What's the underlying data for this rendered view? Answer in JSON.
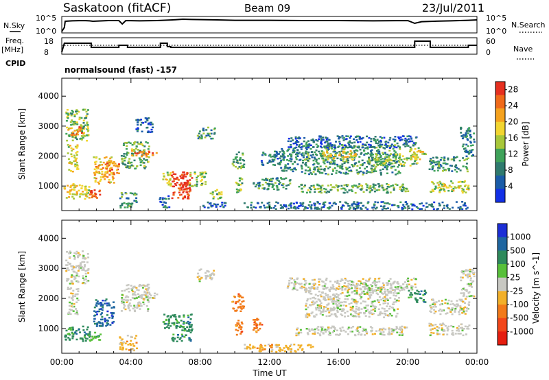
{
  "header": {
    "station": "Saskatoon (fitACF)",
    "beam": "Beam 09",
    "date": "23/Jul/2011"
  },
  "params": {
    "nsky_label": "N.Sky",
    "nsearch_label": "N.Search",
    "freq_label_1": "Freq.",
    "freq_label_2": "[MHz]",
    "nave_label": "Nave",
    "cpid_label": "CPID",
    "cpid_value": "normalsound (fast) -157",
    "noise_ticks": [
      "10^5",
      "10^0"
    ],
    "freq_ticks": [
      "18",
      "8"
    ],
    "nave_ticks": [
      "60",
      "0"
    ],
    "noise_series": [
      [
        0.0,
        0.0
      ],
      [
        0.15,
        0.3
      ],
      [
        0.2,
        0.75
      ],
      [
        0.6,
        0.78
      ],
      [
        1.2,
        0.8
      ],
      [
        1.6,
        0.78
      ],
      [
        1.8,
        0.75
      ],
      [
        2.7,
        0.8
      ],
      [
        3.3,
        0.8
      ],
      [
        3.5,
        0.55
      ],
      [
        3.7,
        0.8
      ],
      [
        4.5,
        0.78
      ],
      [
        5.5,
        0.8
      ],
      [
        6.4,
        0.85
      ],
      [
        7.0,
        0.9
      ],
      [
        7.5,
        0.88
      ],
      [
        9.0,
        0.85
      ],
      [
        10.0,
        0.82
      ],
      [
        12.0,
        0.82
      ],
      [
        14.0,
        0.8
      ],
      [
        16.0,
        0.8
      ],
      [
        18.0,
        0.78
      ],
      [
        20.0,
        0.8
      ],
      [
        20.4,
        0.6
      ],
      [
        20.8,
        0.72
      ],
      [
        21.5,
        0.75
      ],
      [
        22.5,
        0.78
      ],
      [
        23.5,
        0.82
      ],
      [
        24.0,
        0.85
      ]
    ],
    "freq_steps": [
      [
        0.0,
        0.05
      ],
      [
        0.15,
        0.7
      ],
      [
        1.7,
        0.7
      ],
      [
        1.7,
        0.4
      ],
      [
        3.3,
        0.4
      ],
      [
        3.3,
        0.55
      ],
      [
        3.8,
        0.55
      ],
      [
        3.8,
        0.4
      ],
      [
        5.7,
        0.4
      ],
      [
        5.7,
        0.7
      ],
      [
        6.1,
        0.7
      ],
      [
        6.1,
        0.45
      ],
      [
        6.3,
        0.45
      ],
      [
        6.3,
        0.4
      ],
      [
        20.4,
        0.4
      ],
      [
        20.4,
        0.85
      ],
      [
        21.3,
        0.85
      ],
      [
        21.3,
        0.4
      ],
      [
        23.5,
        0.4
      ],
      [
        23.5,
        0.55
      ],
      [
        24.0,
        0.55
      ]
    ],
    "nave_level": 0.55
  },
  "chart_data": [
    {
      "type": "heatmap",
      "title": "",
      "xlabel": "",
      "ylabel": "Slant Range [km]",
      "xlim": [
        0,
        24
      ],
      "ylim": [
        180,
        4600
      ],
      "xticks": [
        "",
        "",
        "",
        "",
        "",
        "",
        ""
      ],
      "yticks": [
        "1000",
        "2000",
        "3000",
        "4000"
      ],
      "ytick_values": [
        1000,
        2000,
        3000,
        4000
      ],
      "colorbar": {
        "label": "Power [dB]",
        "range": [
          0,
          30
        ],
        "ticks": [
          "4",
          "8",
          "12",
          "16",
          "20",
          "24",
          "28"
        ],
        "tick_values": [
          4,
          8,
          12,
          16,
          20,
          24,
          28
        ],
        "colors": [
          "#1230e6",
          "#1a5ca8",
          "#2f7a6e",
          "#3fa25a",
          "#a8c73a",
          "#f2d530",
          "#f5a21e",
          "#f06a1a",
          "#e63020"
        ]
      },
      "features": [
        {
          "t0": 0.1,
          "t1": 1.6,
          "r0": 600,
          "r1": 1100,
          "v": 18
        },
        {
          "t0": 0.2,
          "t1": 1.5,
          "r0": 2500,
          "r1": 3600,
          "v": 14
        },
        {
          "t0": 0.3,
          "t1": 1.2,
          "r0": 2700,
          "r1": 3000,
          "v": 24
        },
        {
          "t0": 0.3,
          "t1": 0.9,
          "r0": 1500,
          "r1": 2400,
          "v": 16
        },
        {
          "t0": 1.5,
          "t1": 2.2,
          "r0": 600,
          "r1": 900,
          "v": 28
        },
        {
          "t0": 1.8,
          "t1": 3.0,
          "r0": 1100,
          "r1": 2000,
          "v": 20
        },
        {
          "t0": 2.5,
          "t1": 3.3,
          "r0": 1400,
          "r1": 1900,
          "v": 24
        },
        {
          "t0": 3.4,
          "t1": 5.0,
          "r0": 1600,
          "r1": 2500,
          "v": 12
        },
        {
          "t0": 4.0,
          "t1": 5.5,
          "r0": 2000,
          "r1": 2200,
          "v": 24
        },
        {
          "t0": 4.2,
          "t1": 5.2,
          "r0": 2800,
          "r1": 3300,
          "v": 6
        },
        {
          "t0": 3.3,
          "t1": 4.3,
          "r0": 300,
          "r1": 800,
          "v": 10
        },
        {
          "t0": 5.6,
          "t1": 6.2,
          "r0": 300,
          "r1": 700,
          "v": 6
        },
        {
          "t0": 5.8,
          "t1": 6.3,
          "r0": 1000,
          "r1": 1500,
          "v": 16
        },
        {
          "t0": 6.3,
          "t1": 7.5,
          "r0": 600,
          "r1": 1500,
          "v": 28
        },
        {
          "t0": 6.8,
          "t1": 7.3,
          "r0": 900,
          "r1": 1400,
          "v": 30
        },
        {
          "t0": 7.3,
          "t1": 8.3,
          "r0": 1000,
          "r1": 1500,
          "v": 14
        },
        {
          "t0": 7.8,
          "t1": 8.8,
          "r0": 2600,
          "r1": 3000,
          "v": 10
        },
        {
          "t0": 8.5,
          "t1": 9.2,
          "r0": 600,
          "r1": 900,
          "v": 14
        },
        {
          "t0": 8.0,
          "t1": 9.5,
          "r0": 300,
          "r1": 500,
          "v": 6
        },
        {
          "t0": 9.8,
          "t1": 10.5,
          "r0": 1600,
          "r1": 2200,
          "v": 12
        },
        {
          "t0": 10.0,
          "t1": 10.4,
          "r0": 800,
          "r1": 1300,
          "v": 14
        },
        {
          "t0": 10.5,
          "t1": 12.0,
          "r0": 300,
          "r1": 500,
          "v": 8
        },
        {
          "t0": 11.0,
          "t1": 13.2,
          "r0": 900,
          "r1": 1300,
          "v": 10
        },
        {
          "t0": 11.5,
          "t1": 12.5,
          "r0": 1700,
          "r1": 2200,
          "v": 8
        },
        {
          "t0": 12.5,
          "t1": 14.0,
          "r0": 1500,
          "r1": 2300,
          "v": 8
        },
        {
          "t0": 13.5,
          "t1": 20.0,
          "r0": 800,
          "r1": 1100,
          "v": 12
        },
        {
          "t0": 14.0,
          "t1": 19.5,
          "r0": 1400,
          "r1": 2400,
          "v": 10
        },
        {
          "t0": 15.0,
          "t1": 17.0,
          "r0": 1900,
          "r1": 2200,
          "v": 18
        },
        {
          "t0": 18.0,
          "t1": 20.5,
          "r0": 1700,
          "r1": 2100,
          "v": 14
        },
        {
          "t0": 13.0,
          "t1": 20.5,
          "r0": 2300,
          "r1": 2700,
          "v": 6
        },
        {
          "t0": 20.0,
          "t1": 21.0,
          "r0": 1900,
          "r1": 2300,
          "v": 18
        },
        {
          "t0": 21.2,
          "t1": 23.5,
          "r0": 800,
          "r1": 1200,
          "v": 16
        },
        {
          "t0": 21.2,
          "t1": 23.5,
          "r0": 1500,
          "r1": 2000,
          "v": 10
        },
        {
          "t0": 23.0,
          "t1": 23.8,
          "r0": 2000,
          "r1": 3000,
          "v": 8
        },
        {
          "t0": 12.0,
          "t1": 23.5,
          "r0": 250,
          "r1": 500,
          "v": 6
        }
      ]
    },
    {
      "type": "heatmap",
      "title": "",
      "xlabel": "Time UT",
      "ylabel": "Slant Range [km]",
      "xlim": [
        0,
        24
      ],
      "ylim": [
        180,
        4600
      ],
      "xticks": [
        "00:00",
        "04:00",
        "08:00",
        "12:00",
        "16:00",
        "20:00",
        "00:00"
      ],
      "yticks": [
        "1000",
        "2000",
        "3000",
        "4000"
      ],
      "ytick_values": [
        1000,
        2000,
        3000,
        4000
      ],
      "colorbar": {
        "label": "Velocity [m s^-1]",
        "ticks": [
          "1000",
          "500",
          "100",
          "25",
          "-25",
          "-100",
          "-500",
          "-1000"
        ],
        "colors": [
          "#1c2fd6",
          "#1f66a0",
          "#2e8a5c",
          "#58c03a",
          "#c8c8c2",
          "#f2b02a",
          "#f27a1a",
          "#f2461a",
          "#e61e10"
        ]
      },
      "features": [
        {
          "t0": 0.1,
          "t1": 1.6,
          "r0": 600,
          "r1": 1100,
          "v": 2
        },
        {
          "t0": 0.2,
          "t1": 1.5,
          "r0": 2500,
          "r1": 3600,
          "v": 4
        },
        {
          "t0": 0.3,
          "t1": 0.9,
          "r0": 1500,
          "r1": 2400,
          "v": 4
        },
        {
          "t0": 1.5,
          "t1": 2.2,
          "r0": 600,
          "r1": 900,
          "v": 3
        },
        {
          "t0": 1.8,
          "t1": 3.0,
          "r0": 1100,
          "r1": 2000,
          "v": 1
        },
        {
          "t0": 3.4,
          "t1": 5.0,
          "r0": 1600,
          "r1": 2500,
          "v": 4
        },
        {
          "t0": 4.0,
          "t1": 5.5,
          "r0": 2000,
          "r1": 2200,
          "v": 4
        },
        {
          "t0": 3.3,
          "t1": 4.3,
          "r0": 300,
          "r1": 800,
          "v": 5
        },
        {
          "t0": 5.8,
          "t1": 6.3,
          "r0": 1000,
          "r1": 1500,
          "v": 2
        },
        {
          "t0": 6.3,
          "t1": 7.5,
          "r0": 600,
          "r1": 1500,
          "v": 2
        },
        {
          "t0": 7.8,
          "t1": 8.8,
          "r0": 2600,
          "r1": 3000,
          "v": 4
        },
        {
          "t0": 9.8,
          "t1": 10.5,
          "r0": 1600,
          "r1": 2200,
          "v": 6
        },
        {
          "t0": 10.0,
          "t1": 10.4,
          "r0": 800,
          "r1": 1300,
          "v": 6
        },
        {
          "t0": 11.0,
          "t1": 11.6,
          "r0": 900,
          "r1": 1400,
          "v": 6
        },
        {
          "t0": 10.5,
          "t1": 14.5,
          "r0": 250,
          "r1": 500,
          "v": 5
        },
        {
          "t0": 13.5,
          "t1": 20.0,
          "r0": 800,
          "r1": 1100,
          "v": 4
        },
        {
          "t0": 14.0,
          "t1": 19.5,
          "r0": 1400,
          "r1": 2400,
          "v": 4
        },
        {
          "t0": 13.0,
          "t1": 20.5,
          "r0": 2300,
          "r1": 2700,
          "v": 4
        },
        {
          "t0": 20.0,
          "t1": 21.0,
          "r0": 1900,
          "r1": 2300,
          "v": 2
        },
        {
          "t0": 21.2,
          "t1": 23.5,
          "r0": 800,
          "r1": 1200,
          "v": 4
        },
        {
          "t0": 21.2,
          "t1": 23.5,
          "r0": 1500,
          "r1": 2000,
          "v": 4
        },
        {
          "t0": 23.0,
          "t1": 23.8,
          "r0": 2000,
          "r1": 3000,
          "v": 4
        }
      ]
    }
  ]
}
